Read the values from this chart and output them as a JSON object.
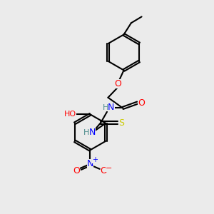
{
  "bg_color": "#ebebeb",
  "atom_colors": {
    "C": "#000000",
    "H": "#4a8a8a",
    "N": "#0000ff",
    "O": "#ff0000",
    "S": "#cccc00"
  },
  "bond_color": "#000000",
  "bond_width": 1.5,
  "dbo": 0.06,
  "figsize": [
    3.0,
    3.0
  ],
  "dpi": 100
}
